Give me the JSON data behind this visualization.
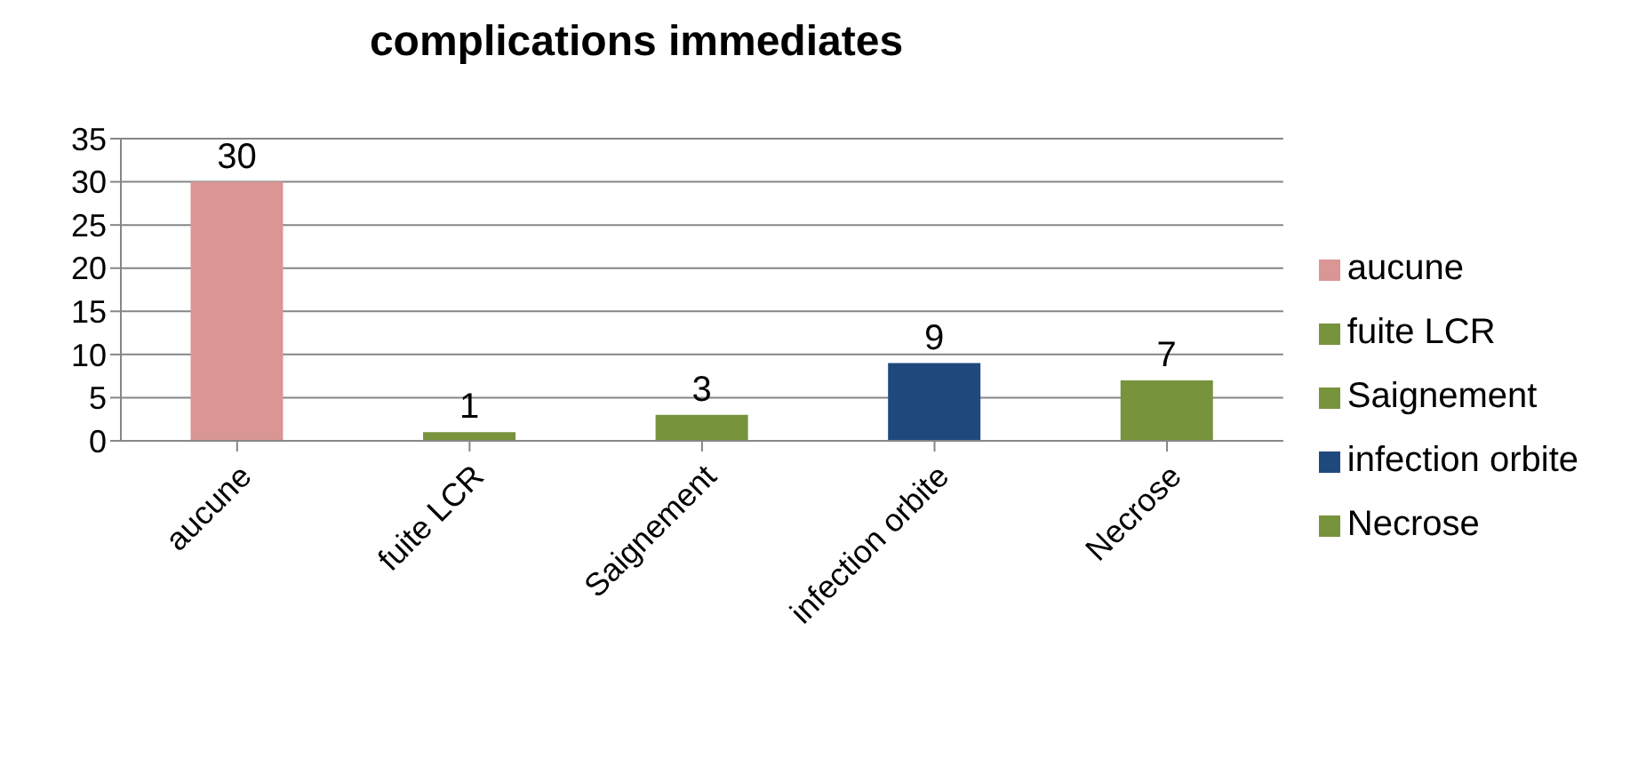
{
  "chart_data": {
    "type": "bar",
    "title": "complications immediates",
    "categories": [
      "aucune",
      "fuite LCR",
      "Saignement",
      "infection orbite",
      "Necrose"
    ],
    "stacked": true,
    "series": [
      {
        "name": "aucune",
        "color": "#d99694",
        "values": [
          30,
          null,
          null,
          null,
          null
        ]
      },
      {
        "name": "fuite LCR",
        "color": "#77933c",
        "values": [
          null,
          1,
          null,
          null,
          null
        ]
      },
      {
        "name": "Saignement",
        "color": "#77933c",
        "values": [
          null,
          null,
          3,
          null,
          null
        ]
      },
      {
        "name": "infection orbite",
        "color": "#1f497d",
        "values": [
          null,
          null,
          null,
          9,
          null
        ]
      },
      {
        "name": "Necrose",
        "color": "#77933c",
        "values": [
          null,
          null,
          null,
          null,
          7
        ]
      }
    ],
    "ylim": [
      0,
      35
    ],
    "yticks": [
      0,
      5,
      10,
      15,
      20,
      25,
      30,
      35
    ],
    "grid": "y",
    "legend": "right",
    "data_labels": true
  }
}
